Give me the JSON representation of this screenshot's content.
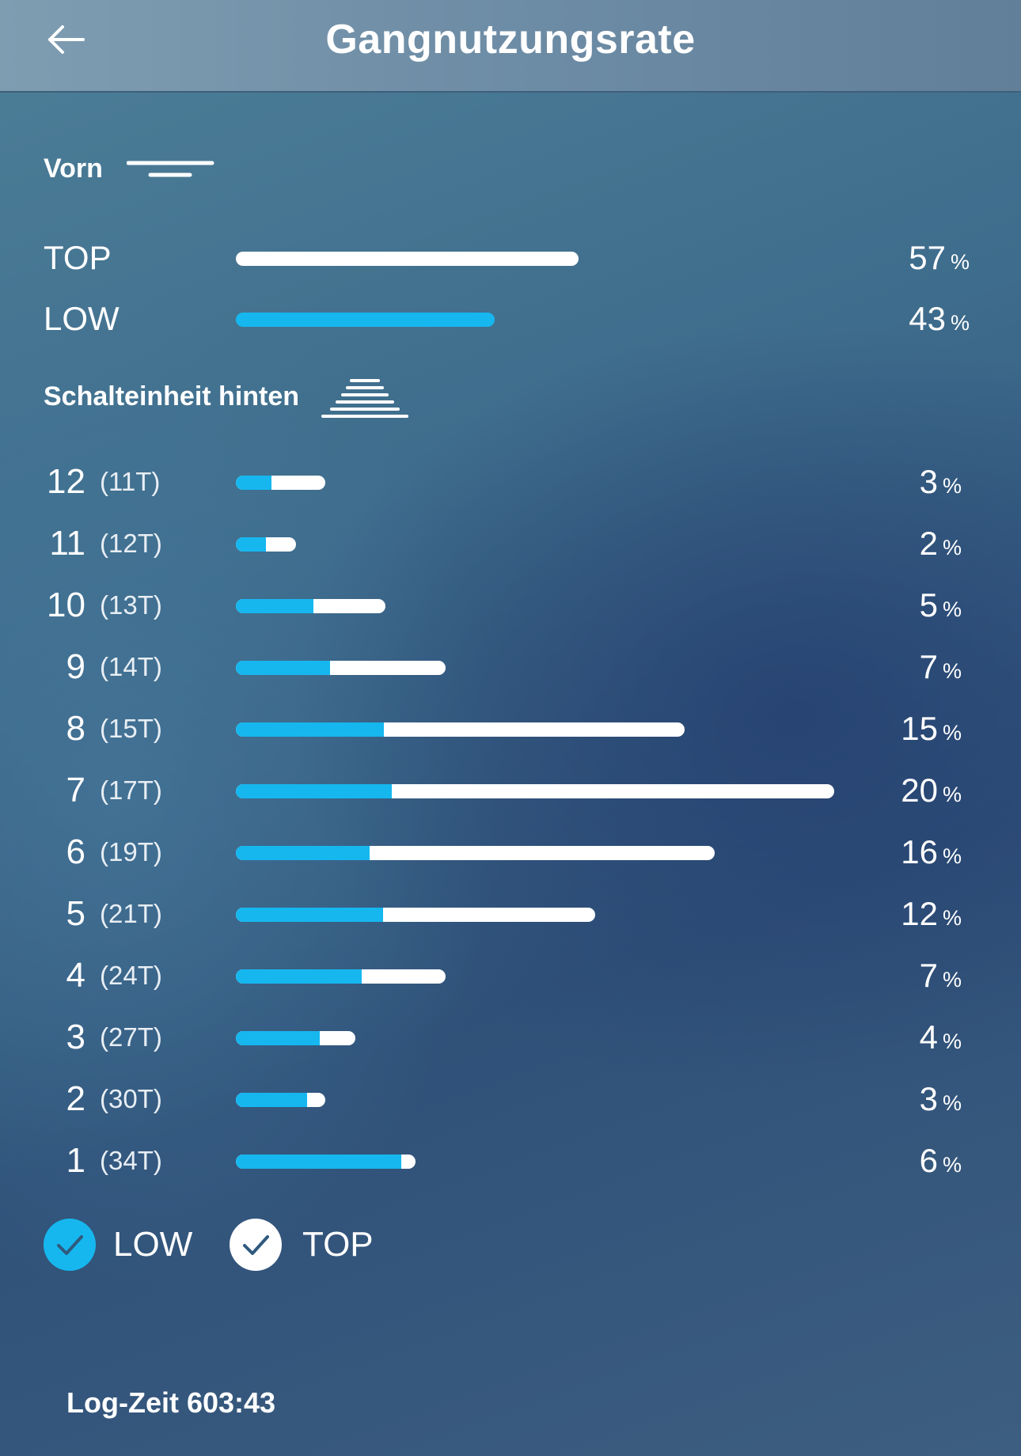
{
  "header": {
    "title": "Gangnutzungsrate",
    "back_icon": "arrow-left-icon"
  },
  "front": {
    "label": "Vorn",
    "icon": "chainring-icon",
    "rows": [
      {
        "label": "TOP",
        "value": "57",
        "unit": "%",
        "fraction": 0.57,
        "color": "#ffffff"
      },
      {
        "label": "LOW",
        "value": "43",
        "unit": "%",
        "fraction": 0.43,
        "color": "#16b7ef"
      }
    ]
  },
  "rear": {
    "label": "Schalteinheit hinten",
    "icon": "cassette-icon",
    "gears": [
      {
        "gear": "12",
        "teeth": "(11T)",
        "value": "3",
        "unit": "%",
        "low_fraction": 0.4,
        "top_fraction": 0.6
      },
      {
        "gear": "11",
        "teeth": "(12T)",
        "value": "2",
        "unit": "%",
        "low_fraction": 0.5,
        "top_fraction": 0.5
      },
      {
        "gear": "10",
        "teeth": "(13T)",
        "value": "5",
        "unit": "%",
        "low_fraction": 0.52,
        "top_fraction": 0.48
      },
      {
        "gear": "9",
        "teeth": "(14T)",
        "value": "7",
        "unit": "%",
        "low_fraction": 0.45,
        "top_fraction": 0.55
      },
      {
        "gear": "8",
        "teeth": "(15T)",
        "value": "15",
        "unit": "%",
        "low_fraction": 0.33,
        "top_fraction": 0.67
      },
      {
        "gear": "7",
        "teeth": "(17T)",
        "value": "20",
        "unit": "%",
        "low_fraction": 0.26,
        "top_fraction": 0.74
      },
      {
        "gear": "6",
        "teeth": "(19T)",
        "value": "16",
        "unit": "%",
        "low_fraction": 0.28,
        "top_fraction": 0.72
      },
      {
        "gear": "5",
        "teeth": "(21T)",
        "value": "12",
        "unit": "%",
        "low_fraction": 0.41,
        "top_fraction": 0.59
      },
      {
        "gear": "4",
        "teeth": "(24T)",
        "value": "7",
        "unit": "%",
        "low_fraction": 0.6,
        "top_fraction": 0.4
      },
      {
        "gear": "3",
        "teeth": "(27T)",
        "value": "4",
        "unit": "%",
        "low_fraction": 0.7,
        "top_fraction": 0.3
      },
      {
        "gear": "2",
        "teeth": "(30T)",
        "value": "3",
        "unit": "%",
        "low_fraction": 0.8,
        "top_fraction": 0.2
      },
      {
        "gear": "1",
        "teeth": "(34T)",
        "value": "6",
        "unit": "%",
        "low_fraction": 0.92,
        "top_fraction": 0.08
      }
    ]
  },
  "legend": [
    {
      "label": "LOW",
      "checked": true,
      "color": "#16b7ef",
      "icon": "check-icon"
    },
    {
      "label": "TOP",
      "checked": true,
      "color": "#ffffff",
      "icon": "check-icon"
    }
  ],
  "footer": {
    "log_time": "Log-Zeit 603:43"
  },
  "colors": {
    "low": "#16b7ef",
    "top": "#ffffff"
  }
}
